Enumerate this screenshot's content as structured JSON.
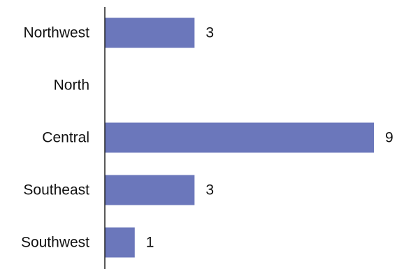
{
  "chart_data": {
    "type": "bar",
    "orientation": "horizontal",
    "categories": [
      "Northwest",
      "North",
      "Central",
      "Southeast",
      "Southwest"
    ],
    "values": [
      3,
      0,
      9,
      3,
      1
    ],
    "value_labels": [
      "3",
      "",
      "9",
      "3",
      "1"
    ],
    "title": "",
    "xlabel": "",
    "ylabel": "",
    "xlim": [
      0,
      9
    ],
    "grid": false,
    "legend": "none",
    "bar_color": "#6b77bb",
    "axis_color": "#222222",
    "text_color": "#111111"
  }
}
